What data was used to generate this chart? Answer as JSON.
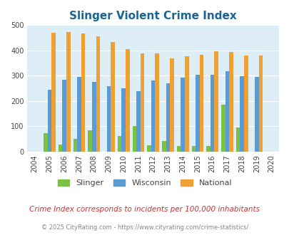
{
  "title": "Slinger Violent Crime Index",
  "years": [
    2004,
    2005,
    2006,
    2007,
    2008,
    2009,
    2010,
    2011,
    2012,
    2013,
    2014,
    2015,
    2016,
    2017,
    2018,
    2019,
    2020
  ],
  "slinger": [
    0,
    72,
    27,
    50,
    85,
    0,
    60,
    100,
    24,
    43,
    23,
    22,
    23,
    185,
    95,
    0,
    0
  ],
  "wisconsin": [
    0,
    245,
    285,
    295,
    276,
    260,
    250,
    240,
    280,
    271,
    293,
    305,
    305,
    318,
    298,
    294,
    0
  ],
  "national": [
    0,
    469,
    473,
    467,
    455,
    432,
    405,
    387,
    387,
    368,
    376,
    383,
    398,
    394,
    380,
    380,
    0
  ],
  "bar_width": 0.27,
  "ylim": [
    0,
    500
  ],
  "yticks": [
    0,
    100,
    200,
    300,
    400,
    500
  ],
  "color_slinger": "#7bc242",
  "color_wisconsin": "#5b9bd5",
  "color_national": "#f0a030",
  "bg_color": "#ddeef6",
  "title_color": "#1a6496",
  "legend_label_slinger": "Slinger",
  "legend_label_wisconsin": "Wisconsin",
  "legend_label_national": "National",
  "subtitle": "Crime Index corresponds to incidents per 100,000 inhabitants",
  "footer": "© 2025 CityRating.com - https://www.cityrating.com/crime-statistics/",
  "subtitle_color": "#cc3333",
  "footer_color": "#888888"
}
